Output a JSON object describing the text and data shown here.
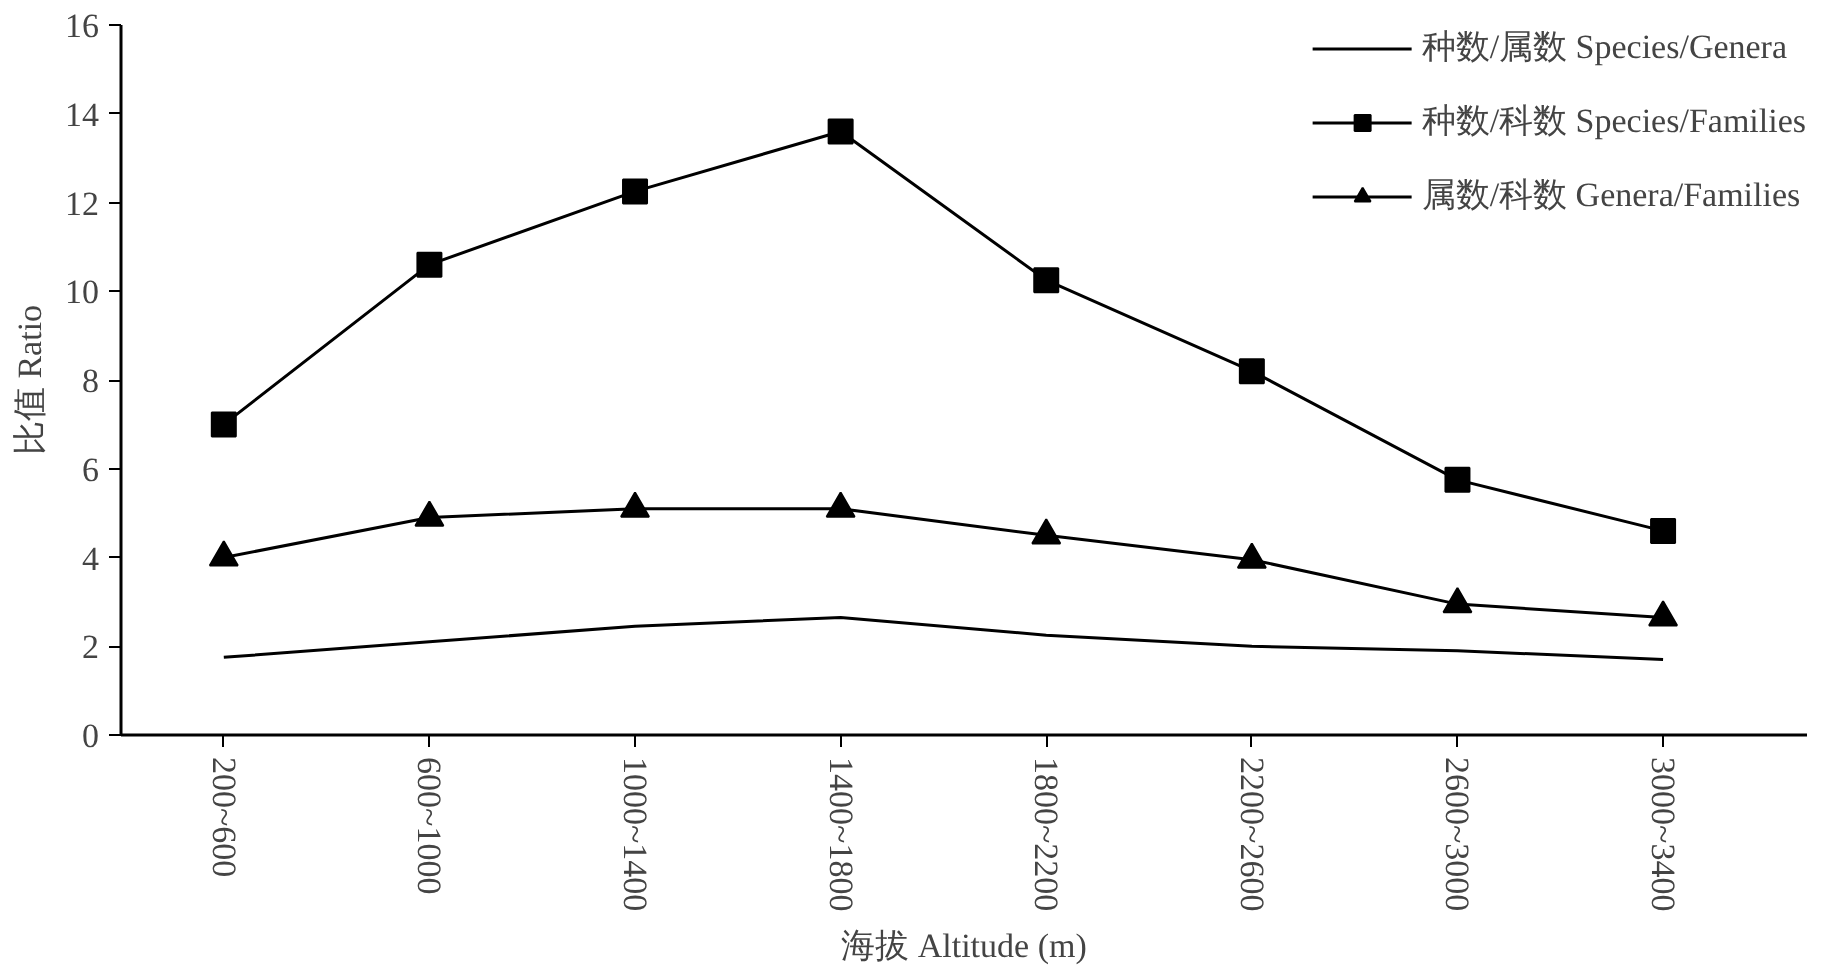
{
  "chart_data": {
    "type": "line",
    "categories": [
      "200~600",
      "600~1000",
      "1000~1400",
      "1400~1800",
      "1800~2200",
      "2200~2600",
      "2600~3000",
      "3000~3400"
    ],
    "xlabel": "海拔 Altitude (m)",
    "ylabel": "比值 Ratio",
    "ylim": [
      0,
      16
    ],
    "yticks": [
      0,
      2,
      4,
      6,
      8,
      10,
      12,
      14,
      16
    ],
    "grid": false,
    "legend": "top right",
    "line_style": "solid",
    "series": [
      {
        "name": "种数/属数 Species/Genera",
        "color": "#000000",
        "marker": "none",
        "values": [
          1.75,
          2.1,
          2.45,
          2.65,
          2.25,
          2.0,
          1.9,
          1.7
        ]
      },
      {
        "name": "种数/科数 Species/Families",
        "color": "#000000",
        "marker": "square",
        "values": [
          7.0,
          10.6,
          12.25,
          13.6,
          10.25,
          8.2,
          5.75,
          4.6
        ]
      },
      {
        "name": "属数/科数 Genera/Families",
        "color": "#000000",
        "marker": "triangle",
        "values": [
          4.0,
          4.9,
          5.1,
          5.1,
          4.5,
          3.95,
          2.95,
          2.65
        ]
      }
    ]
  }
}
